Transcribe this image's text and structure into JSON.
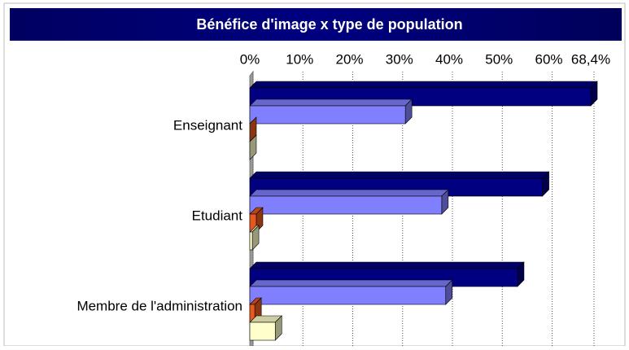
{
  "chart_data": {
    "type": "bar",
    "orientation": "horizontal",
    "title": "Bénéfice d'image x type de population",
    "categories": [
      "Enseignant",
      "Etudiant",
      "Membre de l'administration"
    ],
    "series": [
      {
        "color": "#000080",
        "values": [
          68.4,
          58.7,
          53.7
        ]
      },
      {
        "color": "#8080ff",
        "values": [
          31.2,
          38.5,
          39.3
        ]
      },
      {
        "color": "#e8581c",
        "values": [
          0,
          1.3,
          1.0
        ]
      },
      {
        "color": "#ffffcc",
        "values": [
          0,
          0.5,
          5.1
        ]
      }
    ],
    "xlim": [
      0,
      68.4
    ],
    "xticks": [
      {
        "value": 0,
        "label": "0%"
      },
      {
        "value": 10,
        "label": "10%"
      },
      {
        "value": 20,
        "label": "20%"
      },
      {
        "value": 30,
        "label": "30%"
      },
      {
        "value": 40,
        "label": "40%"
      },
      {
        "value": 50,
        "label": "50%"
      },
      {
        "value": 60,
        "label": "60%"
      },
      {
        "value": 68.4,
        "label": "68,4%"
      }
    ],
    "grid": true
  }
}
